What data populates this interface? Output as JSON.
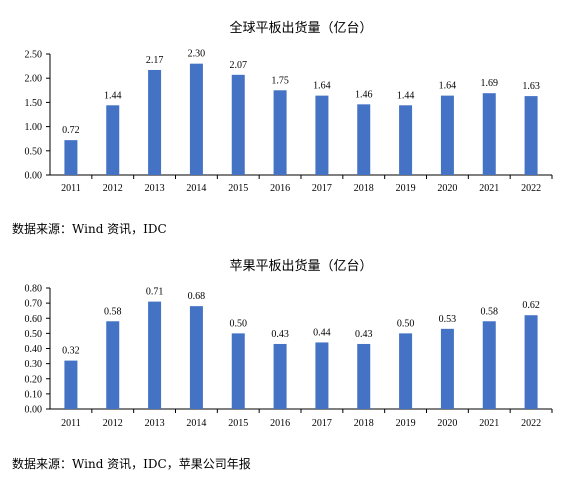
{
  "chart_data": [
    {
      "type": "bar",
      "title": "全球平板出货量（亿台）",
      "xlabel": "",
      "ylabel": "",
      "categories": [
        "2011",
        "2012",
        "2013",
        "2014",
        "2015",
        "2016",
        "2017",
        "2018",
        "2019",
        "2020",
        "2021",
        "2022"
      ],
      "values": [
        0.72,
        1.44,
        2.17,
        2.3,
        2.07,
        1.75,
        1.64,
        1.46,
        1.44,
        1.64,
        1.69,
        1.63
      ],
      "value_labels": [
        "0.72",
        "1.44",
        "2.17",
        "2.30",
        "2.07",
        "1.75",
        "1.64",
        "1.46",
        "1.44",
        "1.64",
        "1.69",
        "1.63"
      ],
      "ylim": [
        0,
        2.5
      ],
      "yticks": [
        "0.00",
        "0.50",
        "1.00",
        "1.50",
        "2.00",
        "2.50"
      ],
      "grid": false,
      "bar_color": "#4472C4"
    },
    {
      "type": "bar",
      "title": "苹果平板出货量（亿台）",
      "xlabel": "",
      "ylabel": "",
      "categories": [
        "2011",
        "2012",
        "2013",
        "2014",
        "2015",
        "2016",
        "2017",
        "2018",
        "2019",
        "2020",
        "2021",
        "2022"
      ],
      "values": [
        0.32,
        0.58,
        0.71,
        0.68,
        0.5,
        0.43,
        0.44,
        0.43,
        0.5,
        0.53,
        0.58,
        0.62
      ],
      "value_labels": [
        "0.32",
        "0.58",
        "0.71",
        "0.68",
        "0.50",
        "0.43",
        "0.44",
        "0.43",
        "0.50",
        "0.53",
        "0.58",
        "0.62"
      ],
      "ylim": [
        0,
        0.8
      ],
      "yticks": [
        "0.00",
        "0.10",
        "0.20",
        "0.30",
        "0.40",
        "0.50",
        "0.60",
        "0.70",
        "0.80"
      ],
      "grid": false,
      "bar_color": "#4472C4"
    }
  ],
  "sources": [
    "数据来源：Wind 资讯，IDC",
    "数据来源：Wind 资讯，IDC，苹果公司年报"
  ]
}
